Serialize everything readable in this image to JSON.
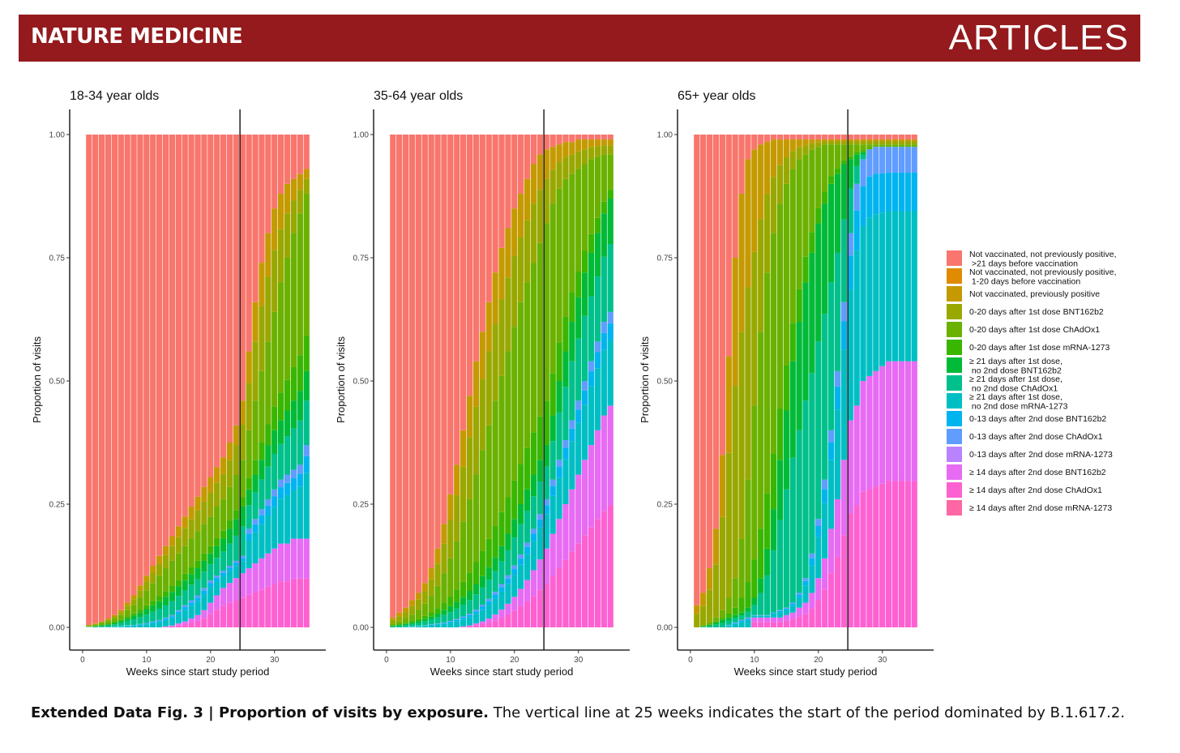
{
  "header": {
    "journal": "NATURE MEDICINE",
    "section": "ARTICLES"
  },
  "caption": {
    "label": "Extended Data Fig. 3 | Proportion of visits by exposure.",
    "text": " The vertical line at 25 weeks indicates the start of the period dominated by B.1.617.2."
  },
  "chart_data": {
    "type": "bar",
    "stacked": true,
    "x_label": "Weeks since start study period",
    "y_label": "Proportion of visits",
    "x_ticks": [
      0,
      10,
      20,
      30
    ],
    "y_ticks": [
      "0.00",
      "0.25",
      "0.50",
      "0.75",
      "1.00"
    ],
    "xlim": [
      -1,
      37
    ],
    "ylim": [
      0,
      1
    ],
    "weeks": [
      1,
      35
    ],
    "vline_week": 24.6,
    "legend_position": "right",
    "categories": [
      {
        "name": "Not vaccinated, not previously positive,\n >21 days before vaccination",
        "color": "#f8766d"
      },
      {
        "name": "Not vaccinated, not previously positive,\n 1-20 days before vaccination",
        "color": "#e08b00"
      },
      {
        "name": "Not vaccinated, previously positive",
        "color": "#c49a00"
      },
      {
        "name": "0-20 days after 1st dose BNT162b2",
        "color": "#99a800"
      },
      {
        "name": "0-20 days after 1st dose ChAdOx1",
        "color": "#6bb100"
      },
      {
        "name": "0-20 days after 1st dose mRNA-1273",
        "color": "#39b600"
      },
      {
        "name": "≥ 21 days after 1st dose,\n no 2nd dose BNT162b2",
        "color": "#00ba38"
      },
      {
        "name": "≥ 21 days after 1st dose,\n no 2nd dose ChAdOx1",
        "color": "#00c08b"
      },
      {
        "name": "≥ 21 days after 1st dose,\n no 2nd dose mRNA-1273",
        "color": "#00bfc4"
      },
      {
        "name": "0-13 days after 2nd dose BNT162b2",
        "color": "#00b4f0"
      },
      {
        "name": "0-13 days after 2nd dose ChAdOx1",
        "color": "#619cff"
      },
      {
        "name": "0-13 days after 2nd dose mRNA-1273",
        "color": "#b983ff"
      },
      {
        "name": "≥ 14 days after 2nd dose BNT162b2",
        "color": "#e76bf3"
      },
      {
        "name": "≥ 14 days after 2nd dose ChAdOx1",
        "color": "#fd61d1"
      },
      {
        "name": "≥ 14 days after 2nd dose mRNA-1273",
        "color": "#ff67a4"
      }
    ],
    "panels": [
      {
        "title": "18-34 year olds",
        "cumulative_key": "cumulative upper bounds (proportion) per week, stacking order from top: unvaccinated >21d, 1-20d, prev positive, 0-20d BNT, 0-20d ChAdOx1, 0-20d mRNA, >=21d BNT, >=21d ChAdOx1, >=21d mRNA, 0-13d 2nd BNT, 0-13d 2nd ChAdOx1, 0-13d 2nd mRNA; remainder bottom = >=14d 2nd BNT",
        "weeks_profile": {
          "unvaccinated_gt21": [
            0.0,
            0.005,
            0.01,
            0.015,
            0.02,
            0.03,
            0.045,
            0.06,
            0.08,
            0.1,
            0.12,
            0.14,
            0.16,
            0.18,
            0.2,
            0.22,
            0.24,
            0.26,
            0.28,
            0.3,
            0.32,
            0.34,
            0.37,
            0.4,
            0.45,
            0.55,
            0.65,
            0.72,
            0.78,
            0.82,
            0.85,
            0.87,
            0.89,
            0.9,
            0.91
          ],
          "other_unvacc": [
            0.005,
            0.008,
            0.012,
            0.018,
            0.025,
            0.035,
            0.05,
            0.065,
            0.085,
            0.105,
            0.125,
            0.145,
            0.165,
            0.185,
            0.205,
            0.225,
            0.245,
            0.265,
            0.285,
            0.305,
            0.325,
            0.345,
            0.375,
            0.41,
            0.46,
            0.56,
            0.66,
            0.74,
            0.8,
            0.85,
            0.88,
            0.9,
            0.91,
            0.92,
            0.93
          ],
          "first_dose_0_20": [
            0.003,
            0.006,
            0.009,
            0.013,
            0.018,
            0.025,
            0.035,
            0.045,
            0.06,
            0.075,
            0.09,
            0.105,
            0.12,
            0.135,
            0.15,
            0.165,
            0.18,
            0.195,
            0.21,
            0.225,
            0.245,
            0.26,
            0.285,
            0.31,
            0.34,
            0.4,
            0.46,
            0.52,
            0.58,
            0.64,
            0.7,
            0.75,
            0.8,
            0.84,
            0.88
          ],
          "first_dose_ge21": [
            0.001,
            0.002,
            0.004,
            0.006,
            0.009,
            0.013,
            0.018,
            0.024,
            0.03,
            0.037,
            0.045,
            0.053,
            0.062,
            0.072,
            0.083,
            0.095,
            0.108,
            0.12,
            0.135,
            0.15,
            0.165,
            0.18,
            0.2,
            0.22,
            0.245,
            0.28,
            0.31,
            0.34,
            0.37,
            0.4,
            0.42,
            0.44,
            0.46,
            0.48,
            0.52
          ],
          "second_dose_0_13": [
            0.0,
            0.0,
            0.001,
            0.001,
            0.002,
            0.003,
            0.004,
            0.005,
            0.007,
            0.009,
            0.012,
            0.015,
            0.02,
            0.025,
            0.035,
            0.045,
            0.055,
            0.065,
            0.08,
            0.095,
            0.105,
            0.115,
            0.125,
            0.135,
            0.145,
            0.2,
            0.22,
            0.24,
            0.26,
            0.28,
            0.3,
            0.31,
            0.32,
            0.33,
            0.37
          ],
          "second_dose_ge14": [
            0.0,
            0.0,
            0.0,
            0.0,
            0.0,
            0.0,
            0.0,
            0.0,
            0.0,
            0.0,
            0.0,
            0.0,
            0.002,
            0.004,
            0.008,
            0.012,
            0.018,
            0.025,
            0.035,
            0.05,
            0.065,
            0.08,
            0.09,
            0.1,
            0.11,
            0.12,
            0.13,
            0.14,
            0.15,
            0.16,
            0.17,
            0.17,
            0.18,
            0.18,
            0.18
          ]
        }
      },
      {
        "title": "35-64 year olds",
        "weeks_profile": {
          "unvaccinated_gt21": [
            0.0,
            0.005,
            0.01,
            0.02,
            0.035,
            0.05,
            0.07,
            0.1,
            0.14,
            0.19,
            0.24,
            0.3,
            0.36,
            0.42,
            0.48,
            0.54,
            0.6,
            0.66,
            0.71,
            0.76,
            0.8,
            0.84,
            0.88,
            0.91,
            0.94,
            0.96,
            0.97,
            0.975,
            0.98,
            0.98,
            0.985,
            0.985,
            0.99,
            0.99,
            0.99
          ],
          "other_unvacc": [
            0.02,
            0.03,
            0.04,
            0.055,
            0.07,
            0.09,
            0.12,
            0.16,
            0.21,
            0.27,
            0.33,
            0.4,
            0.47,
            0.54,
            0.6,
            0.66,
            0.72,
            0.77,
            0.81,
            0.85,
            0.88,
            0.91,
            0.94,
            0.96,
            0.97,
            0.975,
            0.98,
            0.985,
            0.985,
            0.99,
            0.99,
            0.99,
            0.99,
            0.99,
            0.99
          ],
          "first_dose_0_20": [
            0.008,
            0.012,
            0.018,
            0.026,
            0.036,
            0.048,
            0.064,
            0.084,
            0.11,
            0.14,
            0.175,
            0.215,
            0.26,
            0.31,
            0.36,
            0.41,
            0.46,
            0.51,
            0.56,
            0.61,
            0.66,
            0.7,
            0.74,
            0.78,
            0.82,
            0.86,
            0.89,
            0.91,
            0.92,
            0.93,
            0.94,
            0.95,
            0.955,
            0.96,
            0.96
          ],
          "first_dose_ge21": [
            0.003,
            0.005,
            0.007,
            0.01,
            0.013,
            0.017,
            0.022,
            0.028,
            0.035,
            0.043,
            0.052,
            0.062,
            0.074,
            0.088,
            0.104,
            0.122,
            0.142,
            0.165,
            0.19,
            0.22,
            0.25,
            0.28,
            0.31,
            0.34,
            0.37,
            0.43,
            0.5,
            0.56,
            0.62,
            0.67,
            0.72,
            0.76,
            0.8,
            0.84,
            0.87
          ],
          "second_dose_0_13": [
            0.0,
            0.0,
            0.001,
            0.002,
            0.003,
            0.004,
            0.006,
            0.008,
            0.01,
            0.013,
            0.017,
            0.022,
            0.028,
            0.036,
            0.046,
            0.058,
            0.072,
            0.088,
            0.106,
            0.126,
            0.148,
            0.172,
            0.2,
            0.23,
            0.26,
            0.3,
            0.34,
            0.38,
            0.42,
            0.46,
            0.5,
            0.54,
            0.58,
            0.62,
            0.64
          ],
          "second_dose_ge14": [
            0.0,
            0.0,
            0.0,
            0.0,
            0.0,
            0.0,
            0.0,
            0.0,
            0.0,
            0.0,
            0.0,
            0.002,
            0.004,
            0.008,
            0.012,
            0.018,
            0.026,
            0.036,
            0.048,
            0.062,
            0.078,
            0.096,
            0.116,
            0.138,
            0.16,
            0.19,
            0.22,
            0.25,
            0.28,
            0.31,
            0.34,
            0.37,
            0.4,
            0.43,
            0.45
          ]
        }
      },
      {
        "title": "65+ year olds",
        "weeks_profile": {
          "unvaccinated_gt21": [
            0.04,
            0.05,
            0.07,
            0.1,
            0.16,
            0.26,
            0.38,
            0.5,
            0.62,
            0.72,
            0.8,
            0.86,
            0.9,
            0.93,
            0.95,
            0.96,
            0.965,
            0.97,
            0.975,
            0.975,
            0.98,
            0.98,
            0.98,
            0.985,
            0.985,
            0.985,
            0.985,
            0.99,
            0.99,
            0.99,
            0.99,
            0.99,
            0.99,
            0.99,
            0.99
          ],
          "other_unvacc": [
            0.045,
            0.07,
            0.12,
            0.2,
            0.35,
            0.55,
            0.75,
            0.88,
            0.95,
            0.97,
            0.98,
            0.985,
            0.99,
            0.99,
            0.99,
            0.99,
            0.99,
            0.99,
            0.99,
            0.99,
            0.99,
            0.99,
            0.99,
            0.99,
            0.99,
            0.99,
            0.99,
            0.99,
            0.99,
            0.99,
            0.99,
            0.99,
            0.99,
            0.99,
            0.99
          ],
          "first_dose_0_20": [
            0.0,
            0.005,
            0.01,
            0.02,
            0.035,
            0.06,
            0.1,
            0.18,
            0.3,
            0.45,
            0.6,
            0.72,
            0.8,
            0.86,
            0.9,
            0.93,
            0.95,
            0.96,
            0.97,
            0.975,
            0.98,
            0.98,
            0.98,
            0.98,
            0.98,
            0.98,
            0.98,
            0.98,
            0.98,
            0.98,
            0.98,
            0.98,
            0.98,
            0.98,
            0.98
          ],
          "first_dose_ge21": [
            0.0,
            0.002,
            0.005,
            0.01,
            0.015,
            0.02,
            0.025,
            0.03,
            0.04,
            0.06,
            0.1,
            0.16,
            0.24,
            0.34,
            0.44,
            0.54,
            0.62,
            0.7,
            0.76,
            0.82,
            0.86,
            0.9,
            0.92,
            0.94,
            0.95,
            0.96,
            0.965,
            0.97,
            0.975,
            0.975,
            0.975,
            0.975,
            0.975,
            0.975,
            0.975
          ],
          "second_dose_0_13": [
            0.0,
            0.0,
            0.0,
            0.0,
            0.0,
            0.005,
            0.01,
            0.015,
            0.02,
            0.025,
            0.025,
            0.025,
            0.03,
            0.035,
            0.04,
            0.05,
            0.07,
            0.1,
            0.15,
            0.22,
            0.3,
            0.4,
            0.52,
            0.66,
            0.8,
            0.9,
            0.95,
            0.97,
            0.975,
            0.975,
            0.975,
            0.975,
            0.975,
            0.975,
            0.975
          ],
          "second_dose_ge14": [
            0.0,
            0.0,
            0.0,
            0.0,
            0.0,
            0.0,
            0.0,
            0.0,
            0.0,
            0.02,
            0.02,
            0.02,
            0.02,
            0.02,
            0.025,
            0.03,
            0.04,
            0.05,
            0.07,
            0.1,
            0.14,
            0.2,
            0.26,
            0.34,
            0.42,
            0.45,
            0.5,
            0.51,
            0.52,
            0.53,
            0.54,
            0.54,
            0.54,
            0.54,
            0.54
          ]
        }
      }
    ]
  }
}
